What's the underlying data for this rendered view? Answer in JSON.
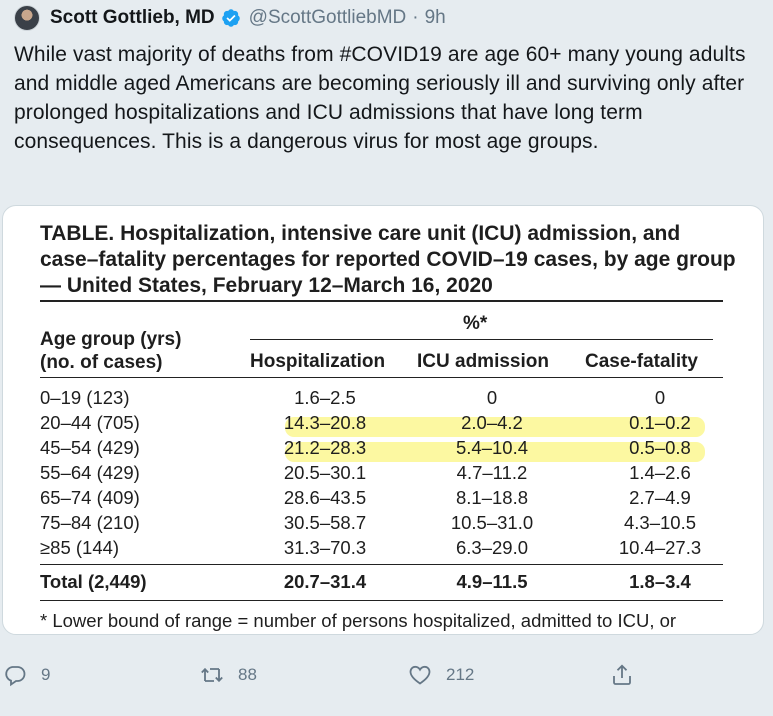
{
  "tweet": {
    "author_name": "Scott Gottlieb, MD",
    "handle": "@ScottGottliebMD",
    "separator": "·",
    "time": "9h",
    "text": "While vast majority of deaths from #COVID19 are age 60+ many young adults and middle aged Americans are becoming seriously ill and surviving only after prolonged hospitalizations and ICU admissions that have long term consequences. This is a dangerous virus for most age groups."
  },
  "table_image": {
    "title": "TABLE. Hospitalization, intensive care unit (ICU) admission, and case–fatality percentages for reported COVID–19 cases, by age group — United States, February 12–March 16, 2020",
    "header_age_line1": "Age group (yrs)",
    "header_age_line2": "(no. of cases)",
    "header_pct": "%*",
    "col_hosp": "Hospitalization",
    "col_icu": "ICU admission",
    "col_cf": "Case-fatality",
    "rows": [
      {
        "age": "0–19 (123)",
        "hosp": "1.6–2.5",
        "icu": "0",
        "cf": "0"
      },
      {
        "age": "20–44 (705)",
        "hosp": "14.3–20.8",
        "icu": "2.0–4.2",
        "cf": "0.1–0.2"
      },
      {
        "age": "45–54 (429)",
        "hosp": "21.2–28.3",
        "icu": "5.4–10.4",
        "cf": "0.5–0.8"
      },
      {
        "age": "55–64 (429)",
        "hosp": "20.5–30.1",
        "icu": "4.7–11.2",
        "cf": "1.4–2.6"
      },
      {
        "age": "65–74 (409)",
        "hosp": "28.6–43.5",
        "icu": "8.1–18.8",
        "cf": "2.7–4.9"
      },
      {
        "age": "75–84 (210)",
        "hosp": "30.5–58.7",
        "icu": "10.5–31.0",
        "cf": "4.3–10.5"
      },
      {
        "age": "≥85 (144)",
        "hosp": "31.3–70.3",
        "icu": "6.3–29.0",
        "cf": "10.4–27.3"
      }
    ],
    "total": {
      "age": "Total (2,449)",
      "hosp": "20.7–31.4",
      "icu": "4.9–11.5",
      "cf": "1.8–3.4"
    },
    "footnote": "* Lower bound of range = number of persons hospitalized, admitted to ICU, or"
  },
  "actions": {
    "reply_count": "9",
    "retweet_count": "88",
    "like_count": "212"
  },
  "colors": {
    "verified": "#1da1f2",
    "action_gray": "#657786",
    "highlight": "#faf56e"
  }
}
